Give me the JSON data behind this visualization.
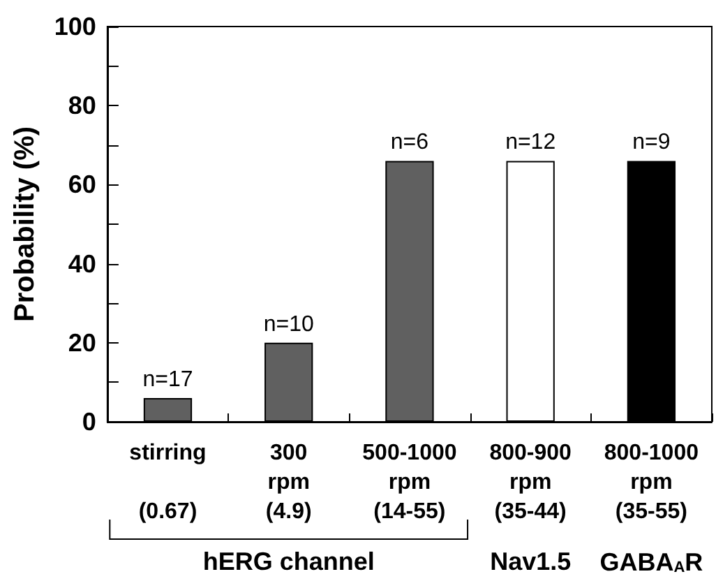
{
  "chart_data": {
    "type": "bar",
    "ylabel": "Probability (%)",
    "categories": [
      "stirring\n\n(0.67)",
      "300\nrpm\n(4.9)",
      "500-1000\nrpm\n(14-55)",
      "800-900\nrpm\n(35-44)",
      "800-1000\nrpm\n(35-55)"
    ],
    "values": [
      6,
      20,
      66,
      66,
      66
    ],
    "colors": [
      "#606060",
      "#606060",
      "#606060",
      "#ffffff",
      "#000000"
    ],
    "ylim": [
      0,
      100
    ],
    "yticks": [
      0,
      20,
      40,
      60,
      80,
      100
    ],
    "annotations": [
      "hERG channel",
      "Nav1.5",
      "GABA$_{A}$R",
      {
        "text": "n=17",
        "x": "stirring\n\n(0.67)",
        "y": 6
      },
      {
        "text": "n=10",
        "x": "300\nrpm\n(4.9)",
        "y": 20
      },
      {
        "text": "n=6",
        "x": "500-1000\nrpm\n(14-55)",
        "y": 66
      },
      {
        "text": "n=12",
        "x": "800-900\nrpm\n(35-44)",
        "y": 66
      },
      {
        "text": "n=9",
        "x": "800-1000\nrpm\n(35-55)",
        "y": 66
      }
    ],
    "grid": false
  }
}
